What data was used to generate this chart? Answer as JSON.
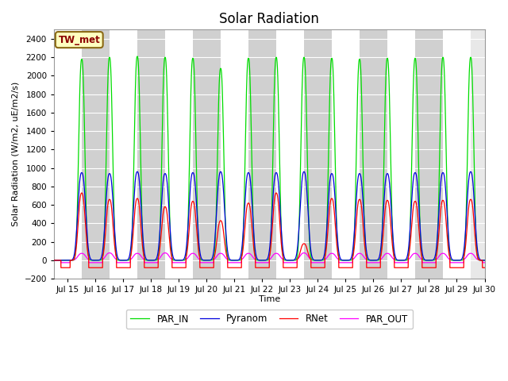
{
  "title": "Solar Radiation",
  "ylabel": "Solar Radiation (W/m2, uE/m2/s)",
  "xlabel": "Time",
  "site_label": "TW_met",
  "xlim": [
    14.5,
    30.0
  ],
  "ylim": [
    -200,
    2500
  ],
  "yticks": [
    -200,
    0,
    200,
    400,
    600,
    800,
    1000,
    1200,
    1400,
    1600,
    1800,
    2000,
    2200,
    2400
  ],
  "xtick_labels": [
    "Jul 15",
    "Jul 16",
    "Jul 17",
    "Jul 18",
    "Jul 19",
    "Jul 20",
    "Jul 21",
    "Jul 22",
    "Jul 23",
    "Jul 24",
    "Jul 25",
    "Jul 26",
    "Jul 27",
    "Jul 28",
    "Jul 29",
    "Jul 30"
  ],
  "xtick_positions": [
    15,
    16,
    17,
    18,
    19,
    20,
    21,
    22,
    23,
    24,
    25,
    26,
    27,
    28,
    29,
    30
  ],
  "colors": {
    "RNet": "#ff0000",
    "Pyranom": "#0000dd",
    "PAR_IN": "#00dd00",
    "PAR_OUT": "#ff00ff"
  },
  "bg_light": "#e8e8e8",
  "bg_dark": "#d0d0d0",
  "site_label_fg": "#8b0000",
  "site_label_bg": "#ffffc0",
  "site_label_border": "#8b6914"
}
